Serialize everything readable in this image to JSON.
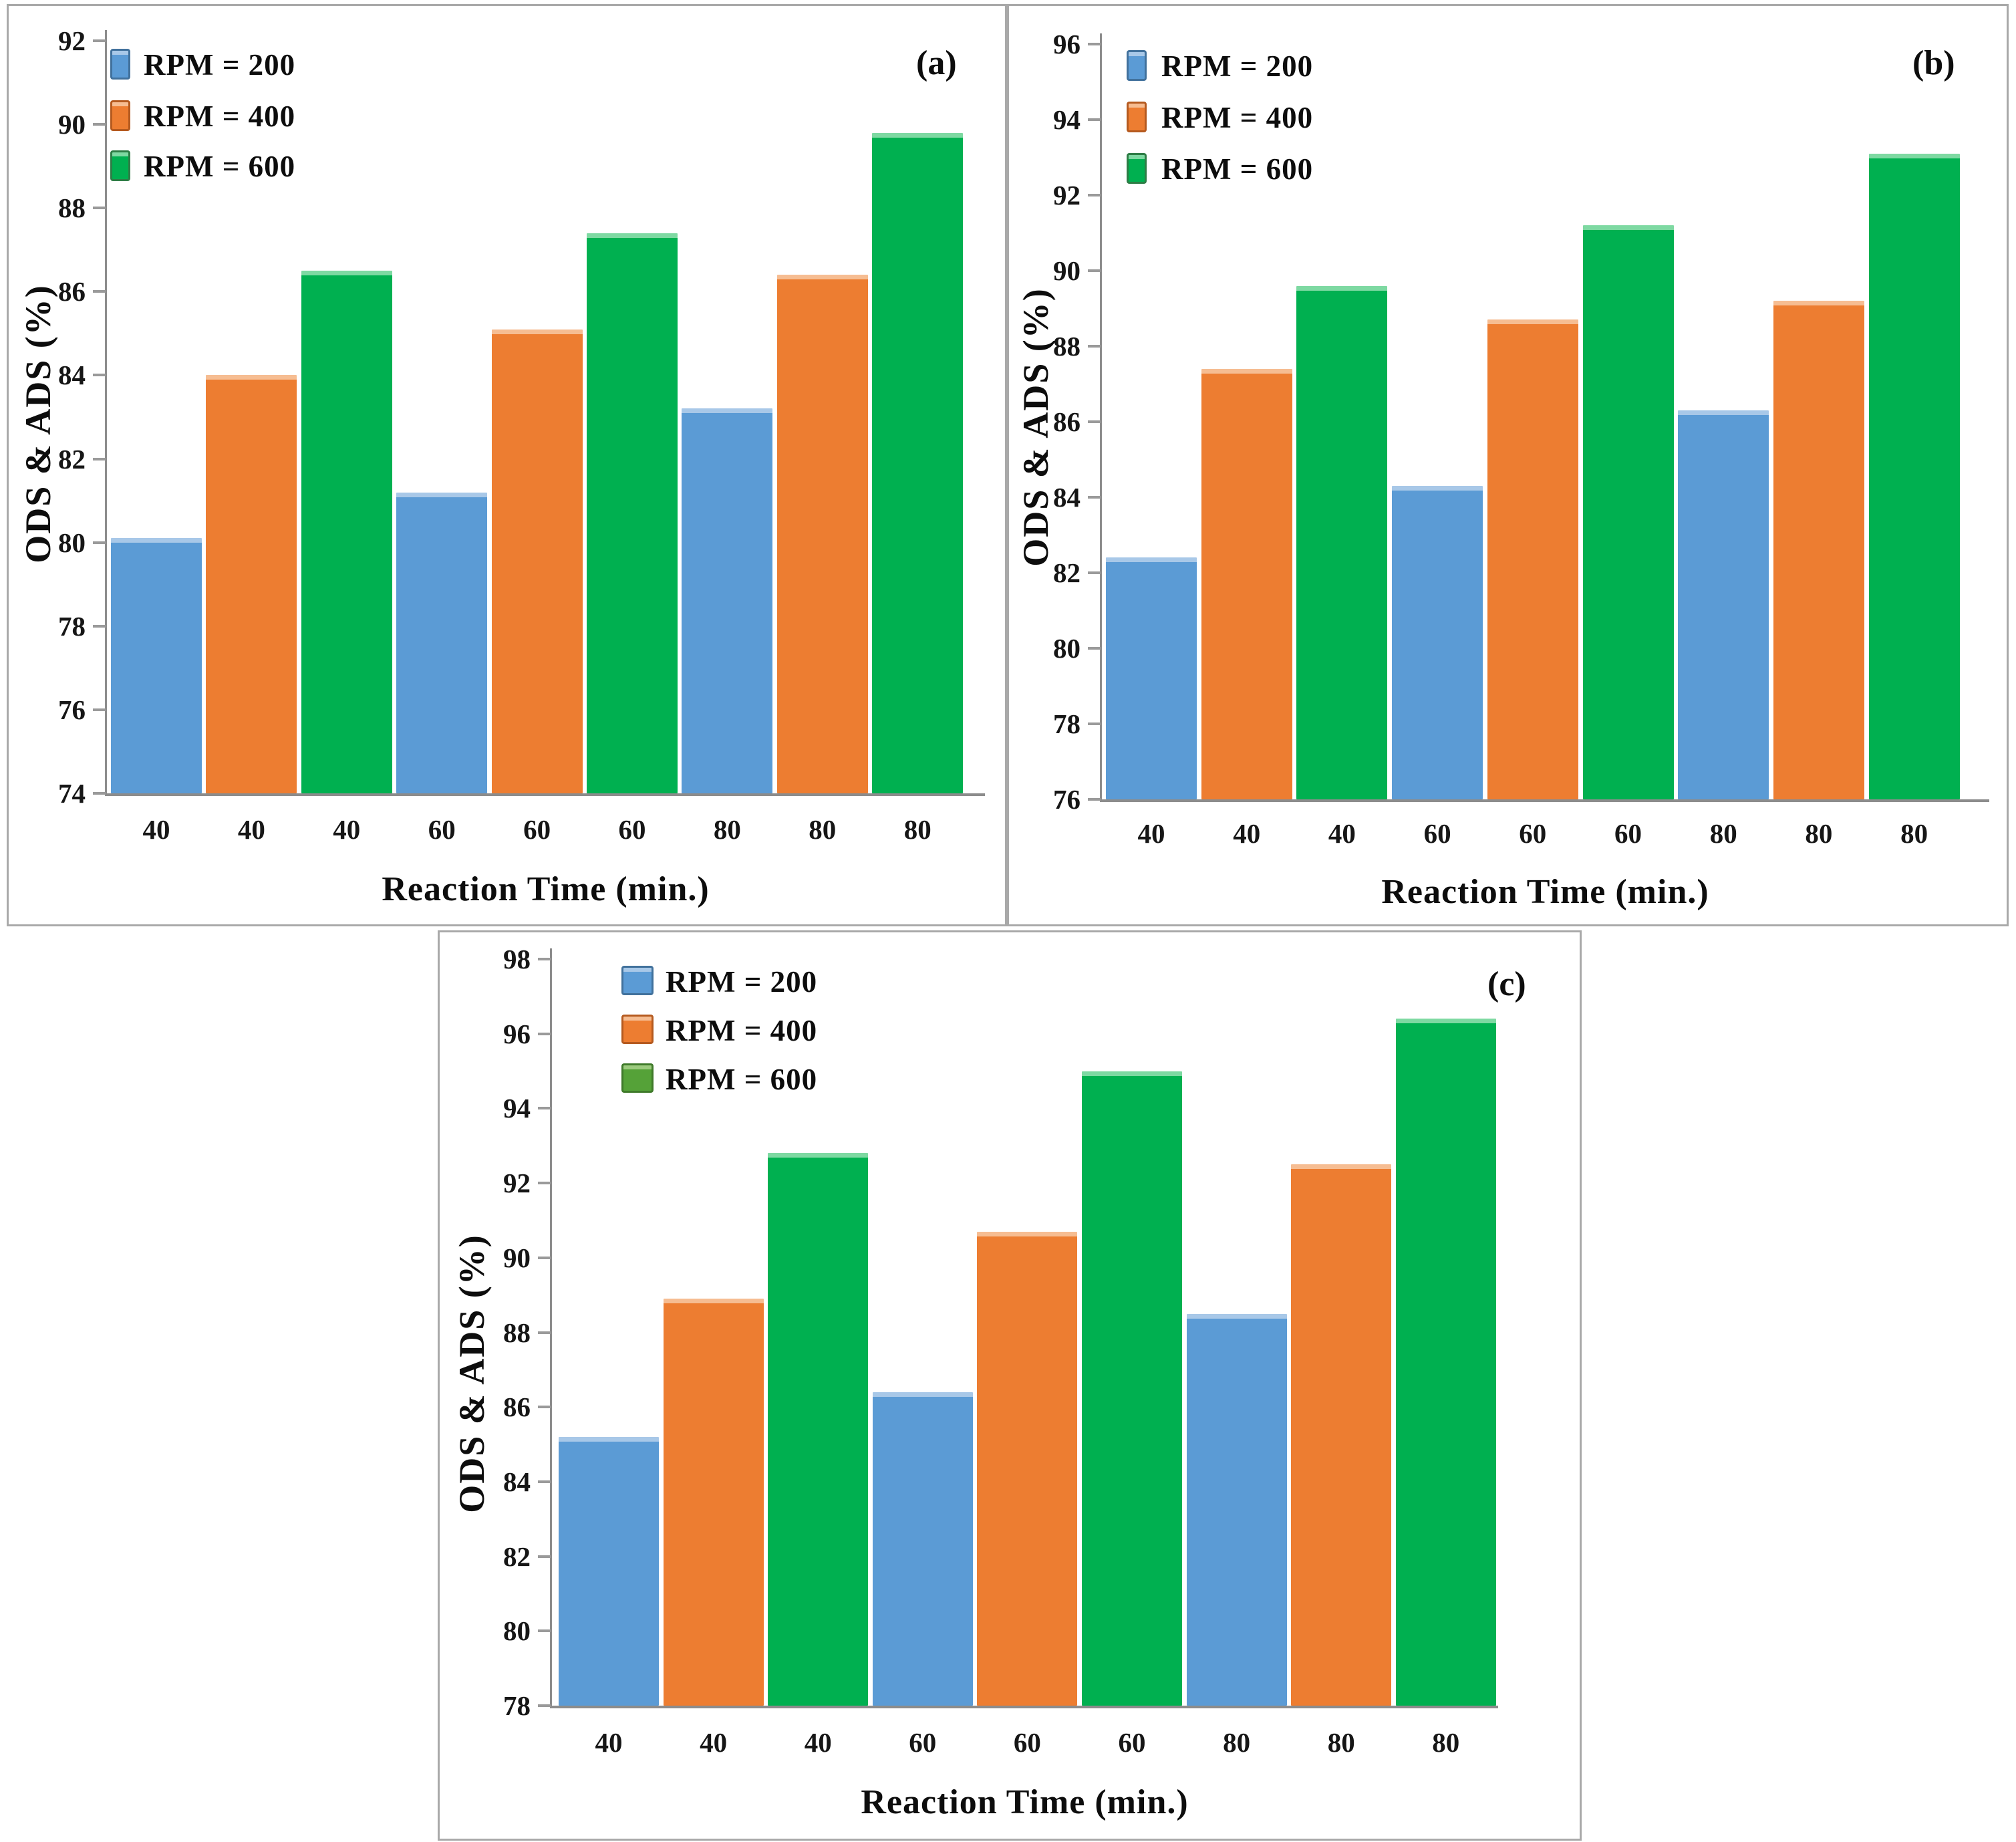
{
  "figure": {
    "description": "Three grouped bar charts of ODS & ADS (%) versus reaction time at different stirring speeds",
    "panel_labels": [
      "(a)",
      "(b)",
      "(c)"
    ]
  },
  "chart_data": [
    {
      "type": "bar",
      "panel_label": "(a)",
      "title": "",
      "xlabel": "Reaction Time (min.)",
      "ylabel": "ODS & ADS (%)",
      "ylim": [
        74,
        92
      ],
      "ytick_step": 2,
      "categories": [
        "40",
        "60",
        "80"
      ],
      "x_tick_labels": [
        "40",
        "40",
        "40",
        "60",
        "60",
        "60",
        "80",
        "80",
        "80"
      ],
      "legend_position": "top-left",
      "grid": false,
      "series": [
        {
          "name": "RPM = 200",
          "color": "#5B9BD5",
          "values": [
            80.1,
            81.2,
            83.2
          ]
        },
        {
          "name": "RPM = 400",
          "color": "#ED7D31",
          "values": [
            84.0,
            85.1,
            86.4
          ]
        },
        {
          "name": "RPM = 600",
          "color": "#00B050",
          "values": [
            86.5,
            87.4,
            89.8
          ]
        }
      ]
    },
    {
      "type": "bar",
      "panel_label": "(b)",
      "title": "",
      "xlabel": "Reaction Time (min.)",
      "ylabel": "ODS & ADS (%)",
      "ylim": [
        76,
        96
      ],
      "ytick_step": 2,
      "categories": [
        "40",
        "60",
        "80"
      ],
      "x_tick_labels": [
        "40",
        "40",
        "40",
        "60",
        "60",
        "60",
        "80",
        "80",
        "80"
      ],
      "legend_position": "top-left",
      "grid": false,
      "series": [
        {
          "name": "RPM = 200",
          "color": "#5B9BD5",
          "values": [
            82.4,
            84.3,
            86.3
          ]
        },
        {
          "name": "RPM = 400",
          "color": "#ED7D31",
          "values": [
            87.4,
            88.7,
            89.2
          ]
        },
        {
          "name": "RPM = 600",
          "color": "#00B050",
          "values": [
            89.6,
            91.2,
            93.1
          ]
        }
      ]
    },
    {
      "type": "bar",
      "panel_label": "(c)",
      "title": "",
      "xlabel": "Reaction Time (min.)",
      "ylabel": "ODS & ADS (%)",
      "ylim": [
        78,
        98
      ],
      "ytick_step": 2,
      "categories": [
        "40",
        "60",
        "80"
      ],
      "x_tick_labels": [
        "40",
        "40",
        "40",
        "60",
        "60",
        "60",
        "80",
        "80",
        "80"
      ],
      "legend_position": "top-left",
      "grid": false,
      "series": [
        {
          "name": "RPM = 200",
          "color": "#5B9BD5",
          "values": [
            85.2,
            86.4,
            88.5
          ]
        },
        {
          "name": "RPM = 400",
          "color": "#ED7D31",
          "values": [
            88.9,
            90.7,
            92.5
          ]
        },
        {
          "name": "RPM = 600",
          "color": "#00B050",
          "legend_color": "#55A238",
          "values": [
            92.8,
            95.0,
            96.4
          ]
        }
      ]
    }
  ],
  "colors": {
    "rpm200": "#5B9BD5",
    "rpm400": "#ED7D31",
    "rpm600": "#00B050",
    "bar_cap_blue": "#A8C8E8",
    "bar_cap_orange": "#F6BD92",
    "bar_cap_green": "#7ED9A2",
    "axis": "#8C8C8C",
    "text": "#141414",
    "panel_border": "#A9A9A9"
  }
}
